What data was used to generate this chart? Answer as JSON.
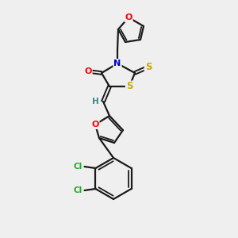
{
  "bg_color": "#efefef",
  "bond_color": "#1a1a1a",
  "atom_colors": {
    "O": "#ff0000",
    "N": "#0000cd",
    "S": "#ccaa00",
    "Cl": "#22aa22",
    "H": "#3a8a8a",
    "C": "#1a1a1a"
  }
}
